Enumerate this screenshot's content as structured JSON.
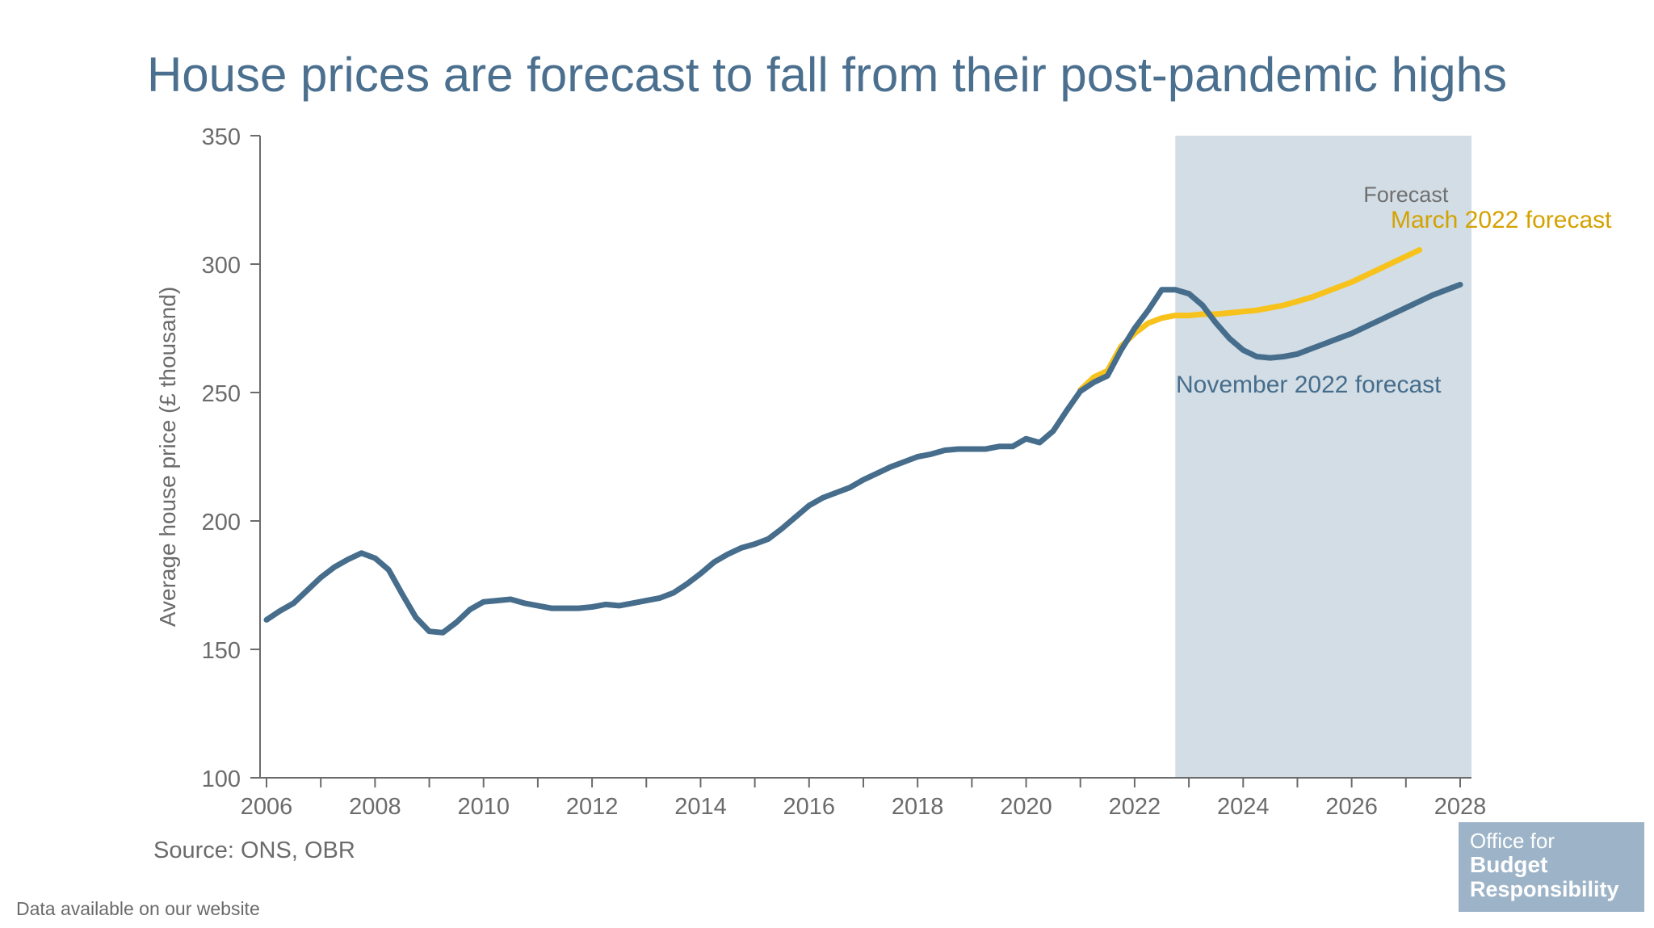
{
  "title": "House prices are forecast to fall from their post-pandemic highs",
  "source": "Source: ONS, OBR",
  "data_note": "Data available on our website",
  "logo": {
    "line1": "Office for",
    "line2": "Budget",
    "line3": "Responsibility"
  },
  "colors": {
    "title": "#4b6f8e",
    "november": "#466d8c",
    "march": "#f7c21b",
    "march_label": "#d4a200",
    "forecast_shade": "#d2dde5",
    "axis": "#6b6b6b"
  },
  "chart_data": {
    "type": "line",
    "title": "House prices are forecast to fall from their post-pandemic highs",
    "xlabel": "",
    "ylabel": "Average house price (£ thousand)",
    "xlim": [
      2006,
      2028.25
    ],
    "ylim": [
      100,
      350
    ],
    "x_ticks": [
      "2006",
      "2008",
      "2010",
      "2012",
      "2014",
      "2016",
      "2018",
      "2020",
      "2022",
      "2024",
      "2026",
      "2028"
    ],
    "y_ticks": [
      "100",
      "150",
      "200",
      "250",
      "300",
      "350"
    ],
    "grid": false,
    "forecast_region": {
      "label": "Forecast",
      "start": 2022.75,
      "end": 2028.25
    },
    "series": [
      {
        "name": "November 2022 forecast",
        "color": "#466d8c",
        "x": [
          2006.0,
          2006.25,
          2006.5,
          2006.75,
          2007.0,
          2007.25,
          2007.5,
          2007.75,
          2008.0,
          2008.25,
          2008.5,
          2008.75,
          2009.0,
          2009.25,
          2009.5,
          2009.75,
          2010.0,
          2010.25,
          2010.5,
          2010.75,
          2011.0,
          2011.25,
          2011.5,
          2011.75,
          2012.0,
          2012.25,
          2012.5,
          2012.75,
          2013.0,
          2013.25,
          2013.5,
          2013.75,
          2014.0,
          2014.25,
          2014.5,
          2014.75,
          2015.0,
          2015.25,
          2015.5,
          2015.75,
          2016.0,
          2016.25,
          2016.5,
          2016.75,
          2017.0,
          2017.25,
          2017.5,
          2017.75,
          2018.0,
          2018.25,
          2018.5,
          2018.75,
          2019.0,
          2019.25,
          2019.5,
          2019.75,
          2020.0,
          2020.25,
          2020.5,
          2020.75,
          2021.0,
          2021.25,
          2021.5,
          2021.75,
          2022.0,
          2022.25,
          2022.5,
          2022.75,
          2023.0,
          2023.25,
          2023.5,
          2023.75,
          2024.0,
          2024.25,
          2024.5,
          2024.75,
          2025.0,
          2025.25,
          2025.5,
          2025.75,
          2026.0,
          2026.25,
          2026.5,
          2026.75,
          2027.0,
          2027.25,
          2027.5,
          2027.75,
          2028.0
        ],
        "values": [
          161.5,
          165,
          168,
          173,
          178,
          182,
          185,
          187.5,
          185.5,
          181,
          171.5,
          162.5,
          157,
          156.5,
          160.5,
          165.5,
          168.5,
          169,
          169.5,
          168,
          167,
          166,
          166,
          166,
          166.5,
          167.5,
          167,
          168,
          169,
          170,
          172,
          175.5,
          179.5,
          184,
          187,
          189.5,
          191,
          193,
          197,
          201.5,
          206,
          209,
          211,
          213,
          216,
          218.5,
          221,
          223,
          225,
          226,
          227.5,
          228,
          228,
          228,
          229,
          229,
          232,
          230.5,
          235,
          243,
          250.5,
          254,
          256.5,
          266.5,
          275,
          282,
          290,
          290,
          288.5,
          284,
          277,
          271,
          266.5,
          264,
          263.5,
          264,
          265,
          267,
          269,
          271,
          273,
          275.5,
          278,
          280.5,
          283,
          285.5,
          288,
          290,
          292
        ]
      },
      {
        "name": "March 2022 forecast",
        "color": "#f7c21b",
        "x": [
          2021.0,
          2021.25,
          2021.5,
          2021.75,
          2022.0,
          2022.25,
          2022.5,
          2022.75,
          2023.0,
          2023.25,
          2023.5,
          2023.75,
          2024.0,
          2024.25,
          2024.5,
          2024.75,
          2025.0,
          2025.25,
          2025.5,
          2025.75,
          2026.0,
          2026.25,
          2026.5,
          2026.75,
          2027.0,
          2027.25
        ],
        "values": [
          251,
          256,
          258.5,
          268,
          273,
          277,
          279,
          280,
          280,
          280.5,
          280.5,
          281,
          281.5,
          282,
          283,
          284,
          285.5,
          287,
          289,
          291,
          293,
          295.5,
          298,
          300.5,
          303,
          305.5
        ]
      }
    ],
    "annotations": [
      {
        "text": "Forecast"
      },
      {
        "text": "March 2022 forecast"
      },
      {
        "text": "November 2022 forecast"
      }
    ]
  }
}
